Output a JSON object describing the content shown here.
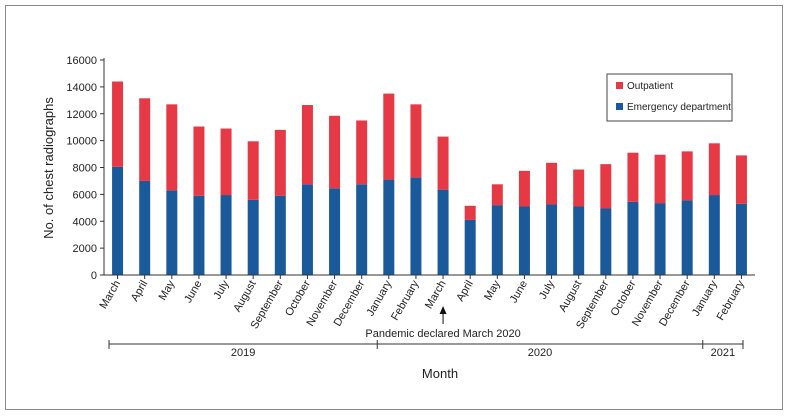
{
  "chart_data": {
    "type": "bar",
    "stacked": true,
    "categories": [
      "March",
      "April",
      "May",
      "June",
      "July",
      "August",
      "September",
      "October",
      "November",
      "December",
      "January",
      "February",
      "March",
      "April",
      "May",
      "June",
      "July",
      "August",
      "September",
      "October",
      "November",
      "December",
      "January",
      "February"
    ],
    "series": [
      {
        "name": "Emergency department",
        "values": [
          8050,
          7000,
          6300,
          5900,
          5950,
          5600,
          5900,
          6750,
          6450,
          6750,
          7100,
          7250,
          6350,
          4100,
          5200,
          5100,
          5250,
          5100,
          4950,
          5450,
          5350,
          5550,
          5950,
          5300
        ]
      },
      {
        "name": "Outpatient",
        "values": [
          6350,
          6150,
          6400,
          5150,
          4950,
          4350,
          4900,
          5900,
          5400,
          4750,
          6400,
          5450,
          3950,
          1050,
          1550,
          2650,
          3100,
          2750,
          3300,
          3650,
          3600,
          3650,
          3850,
          3600
        ]
      }
    ],
    "colors": {
      "Emergency department": "#1a5a9a",
      "Outpatient": "#e63946"
    },
    "ylabel": "No. of chest radiographs",
    "xlabel": "Month",
    "ylim": [
      0,
      16000
    ],
    "yticks": [
      0,
      2000,
      4000,
      6000,
      8000,
      10000,
      12000,
      14000,
      16000
    ],
    "grid": false,
    "legend": "top-right",
    "annotation": "Pandemic declared March 2020",
    "annotation_category_index": 12,
    "year_groups": [
      {
        "label": "2019",
        "from_index": 0,
        "to_index": 9
      },
      {
        "label": "2020",
        "from_index": 10,
        "to_index": 21
      },
      {
        "label": "2021",
        "from_index": 22,
        "to_index": 23
      }
    ]
  }
}
